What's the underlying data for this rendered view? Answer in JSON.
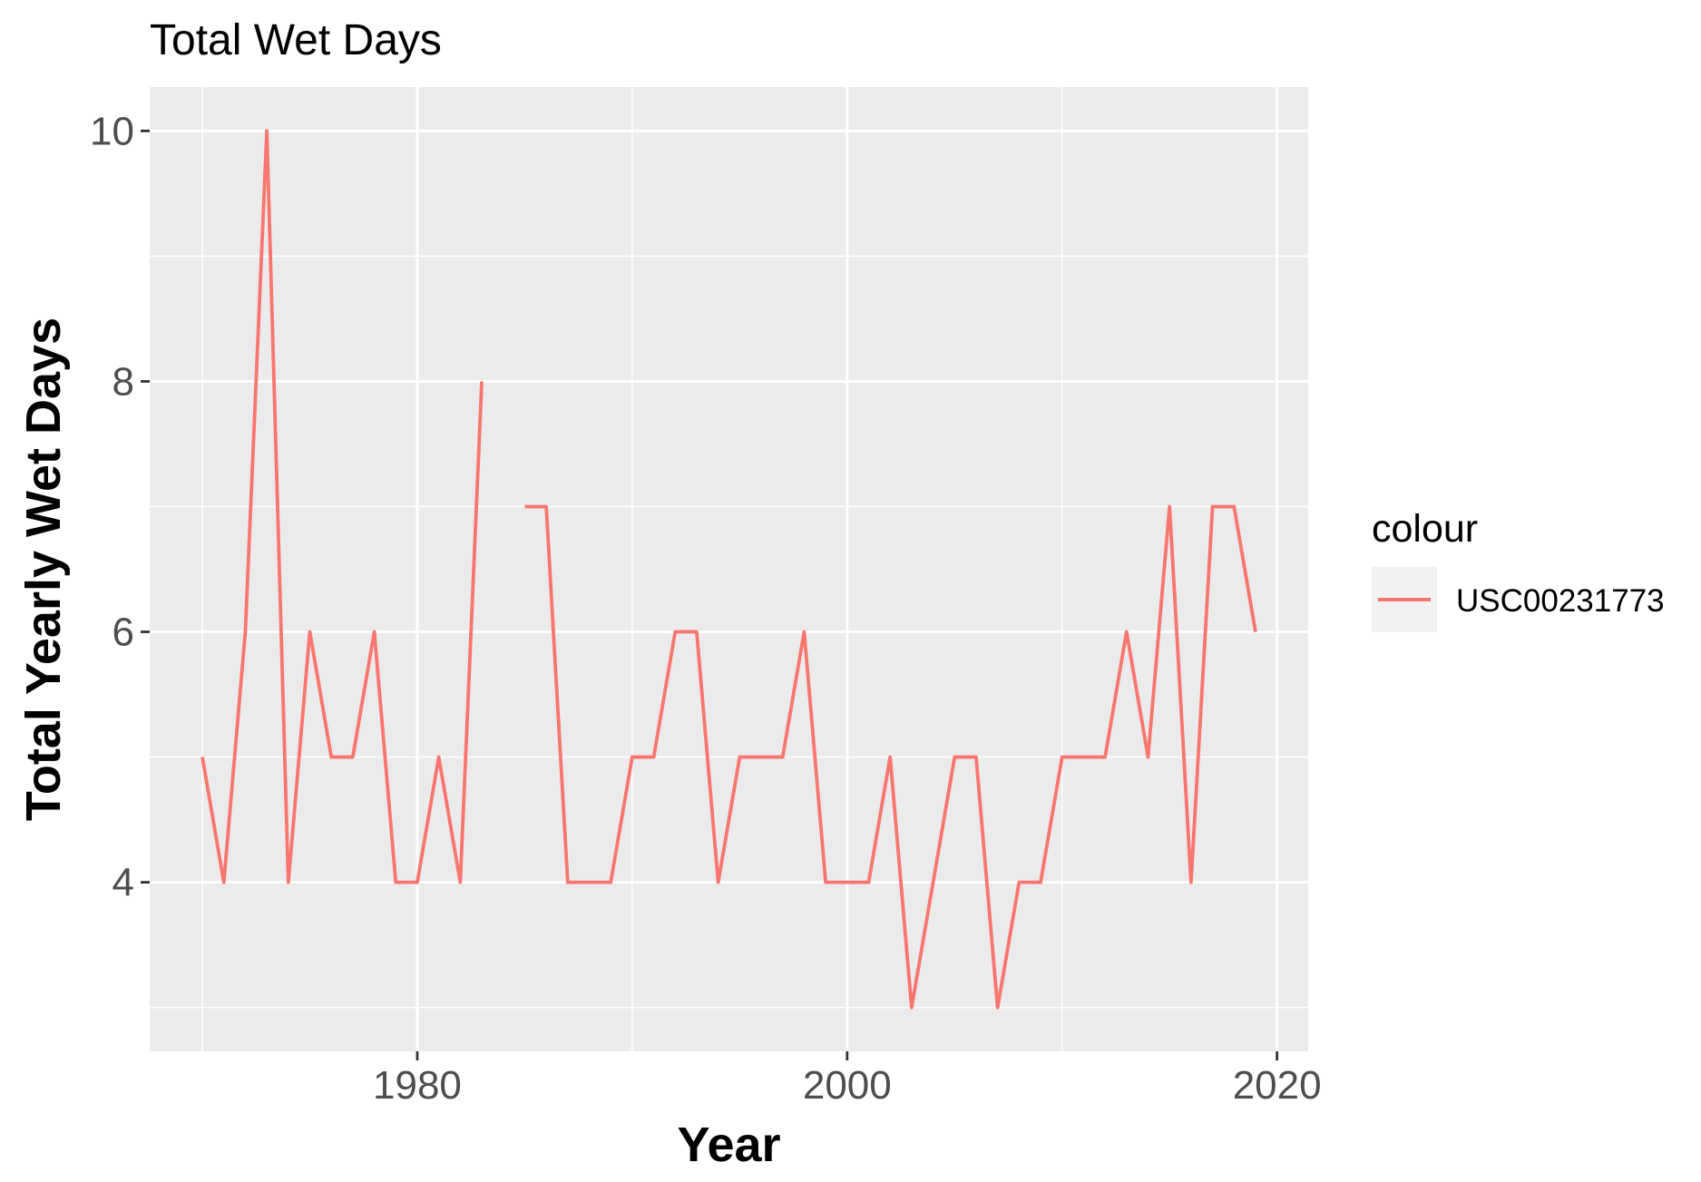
{
  "chart_data": {
    "type": "line",
    "title": "Total Wet Days",
    "xlabel": "Year",
    "ylabel": "Total Yearly Wet Days",
    "xlim": [
      1967.55,
      2021.45
    ],
    "ylim": [
      2.65,
      10.35
    ],
    "x_ticks": [
      1980,
      2000,
      2020
    ],
    "x_minor_ticks": [
      1970,
      1990,
      2010
    ],
    "y_ticks": [
      4,
      6,
      8,
      10
    ],
    "y_minor_ticks": [
      3,
      5,
      7,
      9
    ],
    "grid": true,
    "legend": {
      "title": "colour",
      "position": "right"
    },
    "series": [
      {
        "name": "USC00231773",
        "color": "#F8766D",
        "points": [
          [
            1970,
            5
          ],
          [
            1971,
            4
          ],
          [
            1972,
            6
          ],
          [
            1973,
            10
          ],
          [
            1974,
            4
          ],
          [
            1975,
            6
          ],
          [
            1976,
            5
          ],
          [
            1977,
            5
          ],
          [
            1978,
            6
          ],
          [
            1979,
            4
          ],
          [
            1980,
            4
          ],
          [
            1981,
            5
          ],
          [
            1982,
            4
          ],
          [
            1983,
            8
          ],
          [
            1984,
            null
          ],
          [
            1985,
            7
          ],
          [
            1986,
            7
          ],
          [
            1987,
            4
          ],
          [
            1988,
            4
          ],
          [
            1989,
            4
          ],
          [
            1990,
            5
          ],
          [
            1991,
            5
          ],
          [
            1992,
            6
          ],
          [
            1993,
            6
          ],
          [
            1994,
            4
          ],
          [
            1995,
            5
          ],
          [
            1996,
            5
          ],
          [
            1997,
            5
          ],
          [
            1998,
            6
          ],
          [
            1999,
            4
          ],
          [
            2000,
            4
          ],
          [
            2001,
            4
          ],
          [
            2002,
            5
          ],
          [
            2003,
            3
          ],
          [
            2004,
            4
          ],
          [
            2005,
            5
          ],
          [
            2006,
            5
          ],
          [
            2007,
            3
          ],
          [
            2008,
            4
          ],
          [
            2009,
            4
          ],
          [
            2010,
            5
          ],
          [
            2011,
            5
          ],
          [
            2012,
            5
          ],
          [
            2013,
            6
          ],
          [
            2014,
            5
          ],
          [
            2015,
            7
          ],
          [
            2016,
            4
          ],
          [
            2017,
            7
          ],
          [
            2018,
            7
          ],
          [
            2019,
            6
          ]
        ]
      }
    ]
  }
}
